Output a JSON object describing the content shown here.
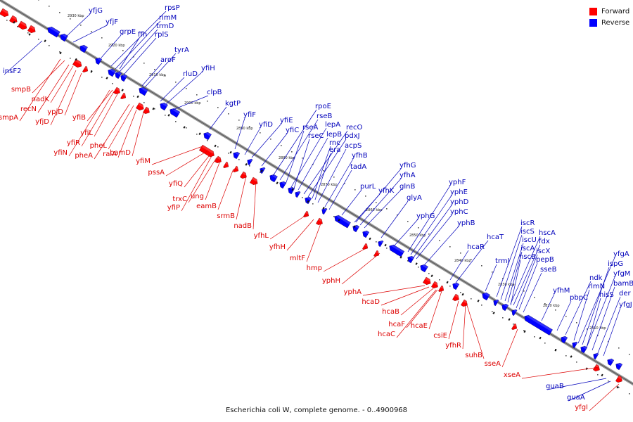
{
  "caption": "Escherichia coli W, complete genome. - 0..4900968",
  "legend": {
    "forward_label": "Forward",
    "reverse_label": "Reverse",
    "forward_color": "#ff0000",
    "reverse_color": "#0000ff"
  },
  "label_colors": {
    "forward": "#dd0000",
    "reverse": "#0000bb"
  },
  "kbp_ticks": [
    {
      "text": "2930 kbp",
      "kbp": 2930
    },
    {
      "text": "2920 kbp",
      "kbp": 2920
    },
    {
      "text": "2910 kbp",
      "kbp": 2910
    },
    {
      "text": "2900 kbp",
      "kbp": 2900
    },
    {
      "text": "2890 kbp",
      "kbp": 2890
    },
    {
      "text": "2880 kbp",
      "kbp": 2880
    },
    {
      "text": "2870 kbp",
      "kbp": 2870
    },
    {
      "text": "2860 kbp",
      "kbp": 2860
    },
    {
      "text": "2850 kbp",
      "kbp": 2850
    },
    {
      "text": "2840 kbp",
      "kbp": 2840
    },
    {
      "text": "2830 kbp",
      "kbp": 2830
    },
    {
      "text": "2820 kbp",
      "kbp": 2820
    },
    {
      "text": "2810 kbp",
      "kbp": 2810
    }
  ],
  "reverse_genes": [
    "yfjG",
    "yfjF",
    "rpsP",
    "rimM",
    "trmD",
    "rplS",
    "ffh",
    "grpE",
    "tyrA",
    "aroF",
    "yfiH",
    "rluD",
    "clpB",
    "kgtP",
    "yfiF",
    "yfiE",
    "yfiD",
    "yfiC",
    "rpoE",
    "rseB",
    "rseA",
    "lepA",
    "rseC",
    "lepB",
    "recO",
    "pdxJ",
    "rnc",
    "era",
    "acpS",
    "yfhB",
    "tadA",
    "yfhG",
    "yfhA",
    "purL",
    "yfhK",
    "glnB",
    "glyA",
    "yphF",
    "yphE",
    "yphD",
    "yphC",
    "yphG",
    "yphB",
    "hcaT",
    "hcaR",
    "trmJ",
    "iscR",
    "iscS",
    "iscU",
    "hscA",
    "fdx",
    "iscA",
    "iscX",
    "hscB",
    "pepB",
    "sseB",
    "yfhM",
    "ndk",
    "pbpC",
    "yfgA",
    "ispG",
    "yfgM",
    "rlmN",
    "bamB",
    "hisS",
    "der",
    "yfgJ",
    "insF2",
    "guaB",
    "guaA"
  ],
  "forward_genes": [
    "smpB",
    "nadK",
    "recN",
    "smpA",
    "ypjD",
    "yfjD",
    "yfiB",
    "yfiL",
    "yfiR",
    "yfiN",
    "pheL",
    "pheA",
    "raiA",
    "bamD",
    "yfiM",
    "pssA",
    "yfiQ",
    "ung",
    "trxC",
    "yfiP",
    "eamB",
    "srmB",
    "nadB",
    "yfhL",
    "yfhH",
    "mltF",
    "hmp",
    "yphH",
    "yphA",
    "hcaD",
    "hcaB",
    "hcaF",
    "hcaE",
    "hcaC",
    "csiE",
    "yfhR",
    "suhB",
    "sseA",
    "xseA",
    "yfgI"
  ]
}
